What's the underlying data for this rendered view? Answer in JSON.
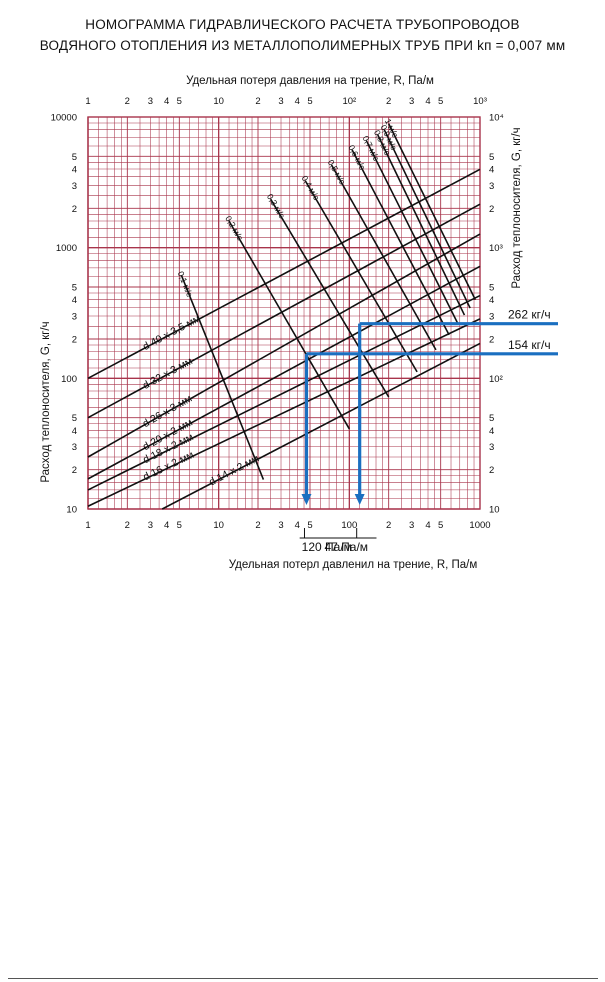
{
  "chart_data": {
    "type": "line",
    "title": [
      "НОМОГРАММА ГИДРАВЛИЧЕСКОГО РАСЧЕТА ТРУБОПРОВОДОВ",
      "ВОДЯНОГО ОТОПЛЕНИЯ ИЗ МЕТАЛЛОПОЛИМЕРНЫХ ТРУБ ПРИ kп = 0,007 мм"
    ],
    "x_top_label": "Удельная потеря давления на трение, R, Па/м",
    "x_bottom_label": "Удельная потерл давленил на трение, R, Па/м",
    "y_left_label": "Расход теплоносителя, G, кг/ч",
    "y_right_label": "Расход теплоносителя, G, кг/ч",
    "x_scale": "log",
    "y_scale": "log",
    "xlim": [
      1,
      1000
    ],
    "ylim": [
      10,
      10000
    ],
    "x_ticks_top": [
      {
        "v": 1,
        "t": "1"
      },
      {
        "v": 2,
        "t": "2"
      },
      {
        "v": 3,
        "t": "3"
      },
      {
        "v": 4,
        "t": "4"
      },
      {
        "v": 5,
        "t": "5"
      },
      {
        "v": 10,
        "t": "10"
      },
      {
        "v": 20,
        "t": "2"
      },
      {
        "v": 30,
        "t": "3"
      },
      {
        "v": 40,
        "t": "4"
      },
      {
        "v": 50,
        "t": "5"
      },
      {
        "v": 100,
        "t": "10²"
      },
      {
        "v": 200,
        "t": "2"
      },
      {
        "v": 300,
        "t": "3"
      },
      {
        "v": 400,
        "t": "4"
      },
      {
        "v": 500,
        "t": "5"
      },
      {
        "v": 1000,
        "t": "10³"
      }
    ],
    "x_ticks_bottom": [
      {
        "v": 1,
        "t": "1"
      },
      {
        "v": 2,
        "t": "2"
      },
      {
        "v": 3,
        "t": "3"
      },
      {
        "v": 4,
        "t": "4"
      },
      {
        "v": 5,
        "t": "5"
      },
      {
        "v": 10,
        "t": "10"
      },
      {
        "v": 20,
        "t": "2"
      },
      {
        "v": 30,
        "t": "3"
      },
      {
        "v": 40,
        "t": "4"
      },
      {
        "v": 50,
        "t": "5"
      },
      {
        "v": 100,
        "t": "100"
      },
      {
        "v": 200,
        "t": "2"
      },
      {
        "v": 300,
        "t": "3"
      },
      {
        "v": 400,
        "t": "4"
      },
      {
        "v": 500,
        "t": "5"
      },
      {
        "v": 1000,
        "t": "1000"
      }
    ],
    "y_ticks_left": [
      {
        "v": 10,
        "t": "10"
      },
      {
        "v": 20,
        "t": "2"
      },
      {
        "v": 30,
        "t": "3"
      },
      {
        "v": 40,
        "t": "4"
      },
      {
        "v": 50,
        "t": "5"
      },
      {
        "v": 100,
        "t": "100"
      },
      {
        "v": 200,
        "t": "2"
      },
      {
        "v": 300,
        "t": "3"
      },
      {
        "v": 400,
        "t": "4"
      },
      {
        "v": 500,
        "t": "5"
      },
      {
        "v": 1000,
        "t": "1000"
      },
      {
        "v": 2000,
        "t": "2"
      },
      {
        "v": 3000,
        "t": "3"
      },
      {
        "v": 4000,
        "t": "4"
      },
      {
        "v": 5000,
        "t": "5"
      },
      {
        "v": 10000,
        "t": "10000"
      }
    ],
    "y_ticks_right": [
      {
        "v": 10,
        "t": "10"
      },
      {
        "v": 20,
        "t": "2"
      },
      {
        "v": 30,
        "t": "3"
      },
      {
        "v": 40,
        "t": "4"
      },
      {
        "v": 50,
        "t": "5"
      },
      {
        "v": 100,
        "t": "10²"
      },
      {
        "v": 200,
        "t": "2"
      },
      {
        "v": 300,
        "t": "3"
      },
      {
        "v": 400,
        "t": "4"
      },
      {
        "v": 500,
        "t": "5"
      },
      {
        "v": 1000,
        "t": "10³"
      },
      {
        "v": 2000,
        "t": "2"
      },
      {
        "v": 3000,
        "t": "3"
      },
      {
        "v": 4000,
        "t": "4"
      },
      {
        "v": 5000,
        "t": "5"
      },
      {
        "v": 10000,
        "t": "10⁴"
      }
    ],
    "pipe_series": [
      {
        "name": "d 40 x 3,5 мм",
        "x": [
          1,
          1000
        ],
        "y": [
          100,
          3980
        ]
      },
      {
        "name": "d 32 x 3 мм",
        "x": [
          1,
          1000
        ],
        "y": [
          50,
          2150
        ]
      },
      {
        "name": "d 26 x 3 мм",
        "x": [
          1,
          1000
        ],
        "y": [
          25,
          1270
        ]
      },
      {
        "name": "d 20 x 2 мм",
        "x": [
          1,
          1000
        ],
        "y": [
          17,
          720
        ]
      },
      {
        "name": "d 18 x 2 мм",
        "x": [
          1,
          1000
        ],
        "y": [
          14,
          430
        ]
      },
      {
        "name": "d 16 x 2 мм",
        "x": [
          1,
          1000
        ],
        "y": [
          10.5,
          285
        ]
      },
      {
        "name": "d 14 x 2 мм",
        "x": [
          3.7,
          1000
        ],
        "y": [
          10,
          185
        ]
      }
    ],
    "velocity_series": [
      {
        "name": "0,1 м/с",
        "x": [
          5.2,
          22
        ],
        "y": [
          610,
          16.8
        ]
      },
      {
        "name": "0,2 м/с",
        "x": [
          12,
          100
        ],
        "y": [
          1600,
          41
        ]
      },
      {
        "name": "0,3 м/с",
        "x": [
          25,
          200
        ],
        "y": [
          2350,
          72
        ]
      },
      {
        "name": "0,4 м/с",
        "x": [
          46,
          330
        ],
        "y": [
          3250,
          112
        ]
      },
      {
        "name": "0,5 м/с",
        "x": [
          73,
          460
        ],
        "y": [
          4300,
          165
        ]
      },
      {
        "name": "0,6 м/с",
        "x": [
          105,
          580
        ],
        "y": [
          5600,
          215
        ]
      },
      {
        "name": "0,7 м/с",
        "x": [
          135,
          680
        ],
        "y": [
          6600,
          260
        ]
      },
      {
        "name": "0,8 м/с",
        "x": [
          165,
          760
        ],
        "y": [
          7300,
          305
        ]
      },
      {
        "name": "0,9 м/с",
        "x": [
          185,
          840
        ],
        "y": [
          8000,
          345
        ]
      },
      {
        "name": "1 м/с",
        "x": [
          200,
          920
        ],
        "y": [
          8900,
          400
        ]
      }
    ],
    "examples": [
      {
        "flow_label": "262 кг/ч",
        "flow": 262,
        "r": 120,
        "r_label": "120 Па/м"
      },
      {
        "flow_label": "154 кг/ч",
        "flow": 154,
        "r": 47,
        "r_label": "47 Па/м"
      }
    ],
    "grid": true,
    "grid_color": "#a8344b",
    "line_color": "#111111",
    "example_color": "#1a6fc0"
  }
}
